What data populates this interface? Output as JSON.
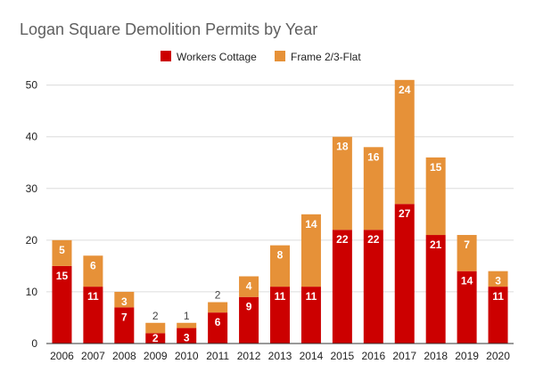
{
  "chart_data": {
    "type": "bar",
    "stacked": true,
    "title": "Logan Square Demolition Permits by Year",
    "xlabel": "",
    "ylabel": "",
    "ylim": [
      0,
      52
    ],
    "yticks": [
      0,
      10,
      20,
      30,
      40,
      50
    ],
    "grid": true,
    "legend_position": "top",
    "categories": [
      "2006",
      "2007",
      "2008",
      "2009",
      "2010",
      "2011",
      "2012",
      "2013",
      "2014",
      "2015",
      "2016",
      "2017",
      "2018",
      "2019",
      "2020"
    ],
    "series": [
      {
        "name": "Workers Cottage",
        "color": "#cc0000",
        "values": [
          15,
          11,
          7,
          2,
          3,
          6,
          9,
          11,
          11,
          22,
          22,
          27,
          21,
          14,
          11
        ]
      },
      {
        "name": "Frame 2/3-Flat",
        "color": "#e69138",
        "values": [
          5,
          6,
          3,
          2,
          1,
          2,
          4,
          8,
          14,
          18,
          16,
          24,
          15,
          7,
          3
        ]
      }
    ]
  }
}
